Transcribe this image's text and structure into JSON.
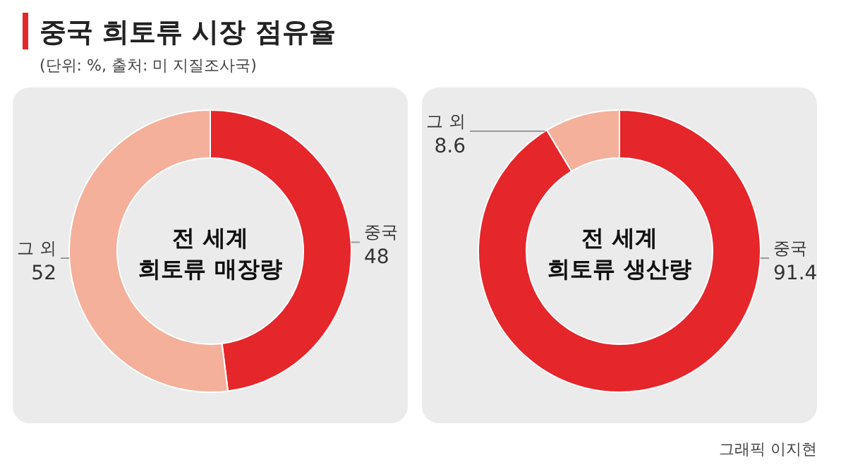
{
  "chart_data": [
    {
      "type": "donut",
      "title": "중국 희토류 시장 점유율",
      "subtitle": "(단위: %, 출처: 미 지질조사국)",
      "annotations": [
        "전 세계 희토류 매장량"
      ],
      "categories": [
        "중국",
        "그 외"
      ],
      "values": [
        48,
        52
      ],
      "colors": [
        "#e5262b",
        "#f4b09a"
      ],
      "data_labels": true
    },
    {
      "type": "donut",
      "annotations": [
        "전 세계 희토류 생산량",
        "그래픽 이지현"
      ],
      "categories": [
        "중국",
        "그 외"
      ],
      "values": [
        91.4,
        8.6
      ],
      "colors": [
        "#e5262b",
        "#f4b09a"
      ],
      "data_labels": true
    }
  ]
}
